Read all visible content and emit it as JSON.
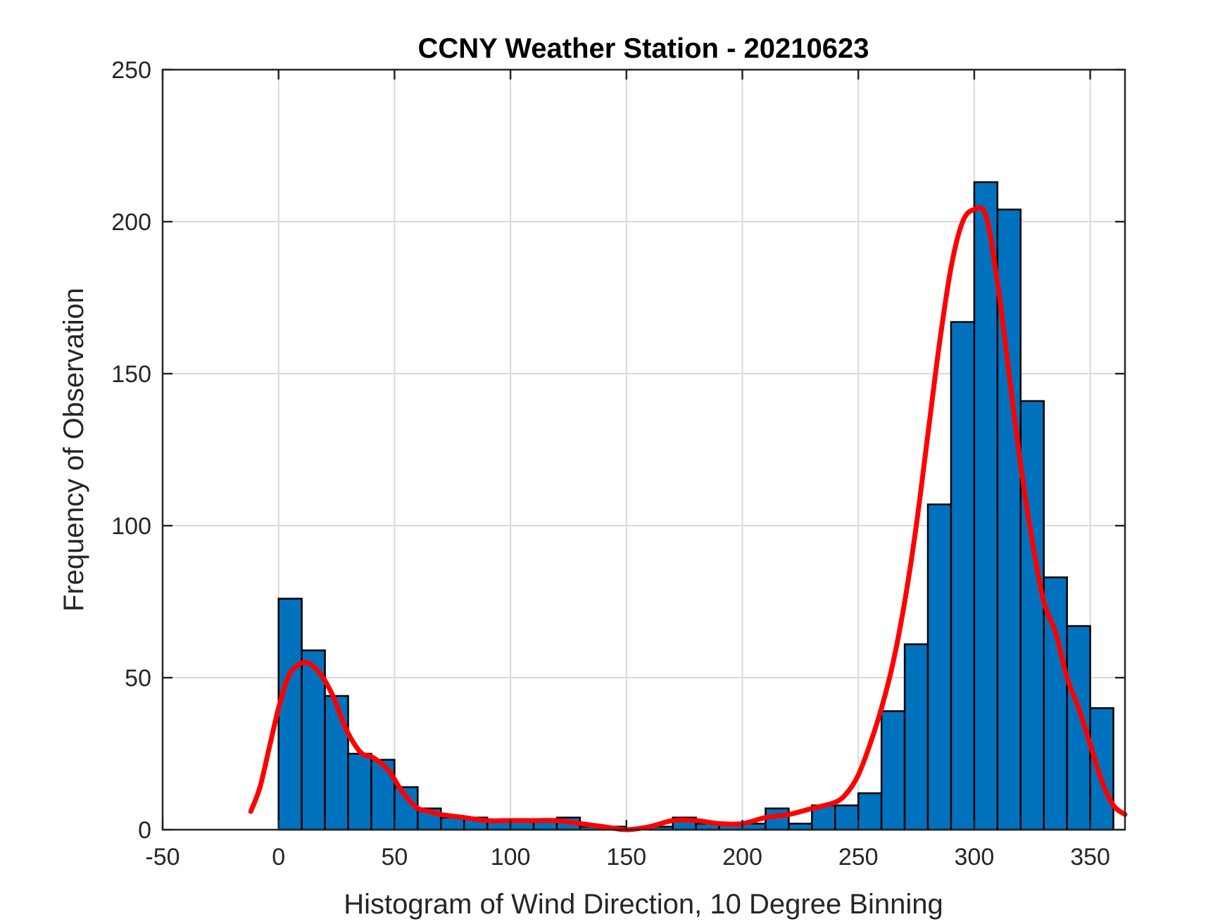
{
  "chart_data": {
    "type": "bar",
    "title": "CCNY Weather Station - 20210623",
    "xlabel": "Histogram of Wind Direction, 10 Degree Binning",
    "ylabel": "Frequency of Observation",
    "xlim": [
      -50,
      365
    ],
    "ylim": [
      0,
      250
    ],
    "xticks": [
      -50,
      0,
      50,
      100,
      150,
      200,
      250,
      300,
      350
    ],
    "yticks": [
      0,
      50,
      100,
      150,
      200,
      250
    ],
    "grid": true,
    "bin_width": 10,
    "bin_edges": [
      0,
      10,
      20,
      30,
      40,
      50,
      60,
      70,
      80,
      90,
      100,
      110,
      120,
      130,
      140,
      150,
      160,
      170,
      180,
      190,
      200,
      210,
      220,
      230,
      240,
      250,
      260,
      270,
      280,
      290,
      300,
      310,
      320,
      330,
      340,
      350,
      360
    ],
    "values": [
      76,
      59,
      44,
      25,
      23,
      14,
      7,
      4,
      4,
      3,
      3,
      3,
      4,
      1,
      1,
      0,
      1,
      4,
      2,
      2,
      2,
      7,
      2,
      8,
      8,
      12,
      39,
      61,
      107,
      167,
      213,
      204,
      141,
      83,
      67,
      40
    ],
    "bar_color": "#0072BD",
    "curve_color": "#FF0000",
    "density_curve": {
      "x": [
        -12,
        -8,
        -4,
        0,
        4,
        8,
        12,
        16,
        20,
        24,
        28,
        32,
        36,
        40,
        44,
        48,
        52,
        56,
        60,
        65,
        70,
        80,
        90,
        100,
        110,
        120,
        130,
        140,
        150,
        160,
        170,
        180,
        190,
        200,
        210,
        220,
        230,
        240,
        245,
        250,
        255,
        260,
        265,
        270,
        275,
        280,
        285,
        290,
        295,
        300,
        305,
        310,
        315,
        320,
        325,
        330,
        335,
        340,
        345,
        350,
        355,
        360,
        365
      ],
      "y": [
        6,
        14,
        27,
        40,
        50,
        54,
        55,
        53,
        49,
        43,
        35,
        29,
        25,
        24,
        22,
        19,
        14,
        10,
        7,
        6,
        5,
        4,
        3,
        3,
        3,
        3,
        2,
        1,
        0,
        1,
        3,
        3,
        2,
        2,
        4,
        5,
        7,
        9,
        12,
        18,
        28,
        40,
        55,
        75,
        100,
        130,
        160,
        185,
        200,
        204,
        202,
        180,
        150,
        120,
        95,
        75,
        65,
        50,
        40,
        28,
        16,
        8,
        5
      ]
    }
  }
}
